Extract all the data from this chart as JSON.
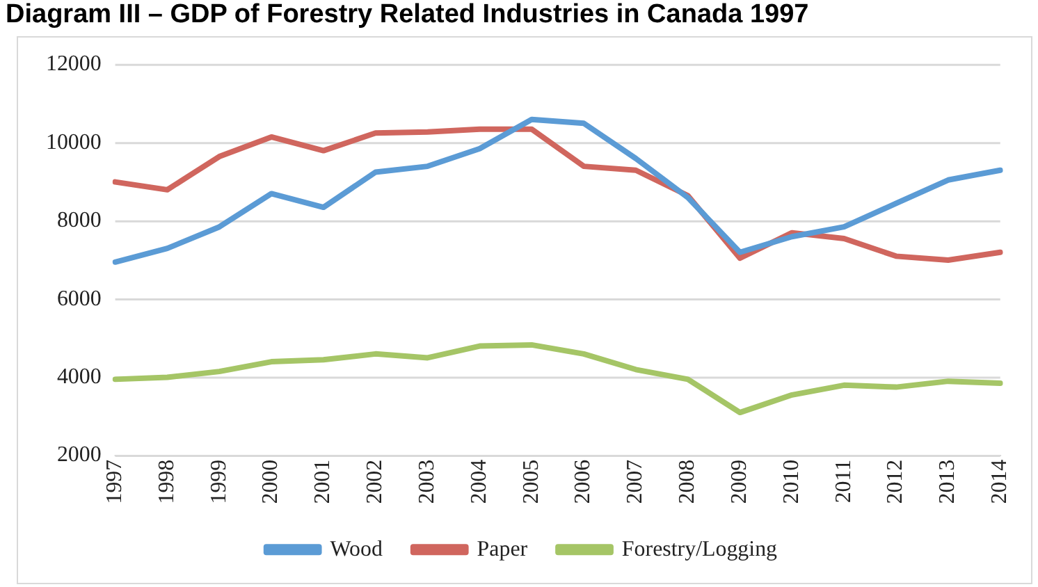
{
  "chart_data": {
    "type": "line",
    "title": "Diagram III – GDP of Forestry Related Industries in Canada 1997",
    "categories": [
      "1997",
      "1998",
      "1999",
      "2000",
      "2001",
      "2002",
      "2003",
      "2004",
      "2005",
      "2006",
      "2007",
      "2008",
      "2009",
      "2010",
      "2011",
      "2012",
      "2013",
      "2014"
    ],
    "series": [
      {
        "name": "Wood",
        "color": "#5b9bd5",
        "values": [
          6950,
          7300,
          7850,
          8700,
          8350,
          9250,
          9400,
          9850,
          10600,
          10500,
          9600,
          8600,
          7200,
          7600,
          7850,
          8450,
          9050,
          9300
        ]
      },
      {
        "name": "Paper",
        "color": "#d0665e",
        "values": [
          9000,
          8800,
          9650,
          10150,
          9800,
          10250,
          10280,
          10350,
          10350,
          9400,
          9300,
          8650,
          7050,
          7700,
          7550,
          7100,
          7000,
          7200
        ]
      },
      {
        "name": "Forestry/Logging",
        "color": "#a5c566",
        "values": [
          3950,
          4000,
          4150,
          4400,
          4450,
          4600,
          4500,
          4800,
          4830,
          4600,
          4200,
          3950,
          3100,
          3550,
          3800,
          3750,
          3900,
          3850
        ]
      }
    ],
    "ylim": [
      2000,
      12000
    ],
    "yticks": [
      2000,
      4000,
      6000,
      8000,
      10000,
      12000
    ],
    "grid": "y",
    "legend": "bottom",
    "marker": "none",
    "line_style": "solid"
  }
}
